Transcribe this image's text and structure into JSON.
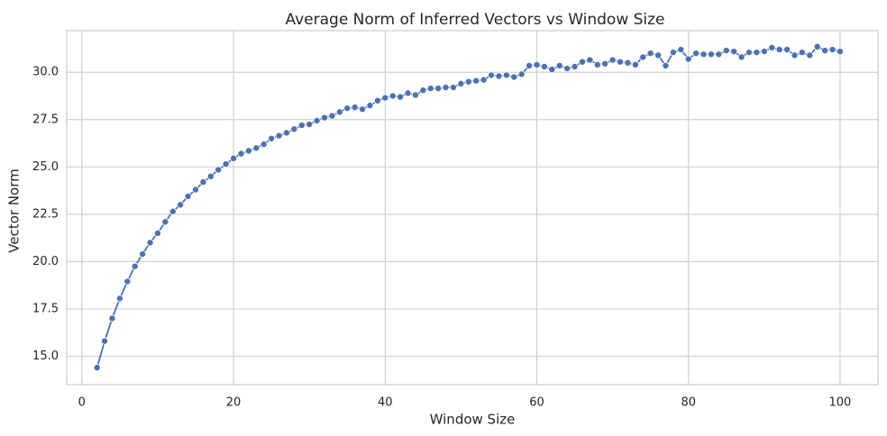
{
  "chart_data": {
    "type": "line",
    "title": "Average Norm of Inferred Vectors vs Window Size",
    "xlabel": "Window Size",
    "ylabel": "Vector Norm",
    "xlim": [
      -2,
      105
    ],
    "ylim": [
      13.5,
      32.2
    ],
    "xticks": [
      0,
      20,
      40,
      60,
      80,
      100
    ],
    "yticks": [
      15.0,
      17.5,
      20.0,
      22.5,
      25.0,
      27.5,
      30.0
    ],
    "ytick_labels": [
      "15.0",
      "17.5",
      "20.0",
      "22.5",
      "25.0",
      "27.5",
      "30.0"
    ],
    "grid": true,
    "marker": "circle",
    "colors": {
      "line": "#4c72b0",
      "grid": "#d0d0d0",
      "spine": "#cccccc",
      "text": "#262626"
    },
    "series": [
      {
        "x": [
          2,
          3,
          4,
          5,
          6,
          7,
          8,
          9,
          10,
          11,
          12,
          13,
          14,
          15,
          16,
          17,
          18,
          19,
          20,
          21,
          22,
          23,
          24,
          25,
          26,
          27,
          28,
          29,
          30,
          31,
          32,
          33,
          34,
          35,
          36,
          37,
          38,
          39,
          40,
          41,
          42,
          43,
          44,
          45,
          46,
          47,
          48,
          49,
          50,
          51,
          52,
          53,
          54,
          55,
          56,
          57,
          58,
          59,
          60,
          61,
          62,
          63,
          64,
          65,
          66,
          67,
          68,
          69,
          70,
          71,
          72,
          73,
          74,
          75,
          76,
          77,
          78,
          79,
          80,
          81,
          82,
          83,
          84,
          85,
          86,
          87,
          88,
          89,
          90,
          91,
          92,
          93,
          94,
          95,
          96,
          97,
          98,
          99,
          100
        ],
        "values": [
          14.4,
          15.8,
          17.0,
          18.05,
          18.95,
          19.75,
          20.4,
          21.0,
          21.5,
          22.1,
          22.65,
          23.0,
          23.45,
          23.8,
          24.2,
          24.5,
          24.85,
          25.15,
          25.45,
          25.7,
          25.85,
          26.0,
          26.2,
          26.5,
          26.65,
          26.8,
          27.0,
          27.2,
          27.25,
          27.45,
          27.6,
          27.7,
          27.9,
          28.1,
          28.15,
          28.05,
          28.25,
          28.5,
          28.65,
          28.75,
          28.7,
          28.9,
          28.8,
          29.05,
          29.15,
          29.15,
          29.2,
          29.2,
          29.4,
          29.5,
          29.55,
          29.6,
          29.85,
          29.8,
          29.85,
          29.75,
          29.9,
          30.35,
          30.4,
          30.3,
          30.15,
          30.35,
          30.2,
          30.3,
          30.55,
          30.65,
          30.4,
          30.45,
          30.65,
          30.55,
          30.5,
          30.4,
          30.8,
          31.0,
          30.9,
          30.35,
          31.05,
          31.2,
          30.7,
          31.0,
          30.95,
          30.95,
          30.95,
          31.15,
          31.1,
          30.8,
          31.05,
          31.05,
          31.1,
          31.3,
          31.2,
          31.2,
          30.9,
          31.05,
          30.9,
          31.35,
          31.15,
          31.2,
          31.1
        ]
      }
    ]
  }
}
